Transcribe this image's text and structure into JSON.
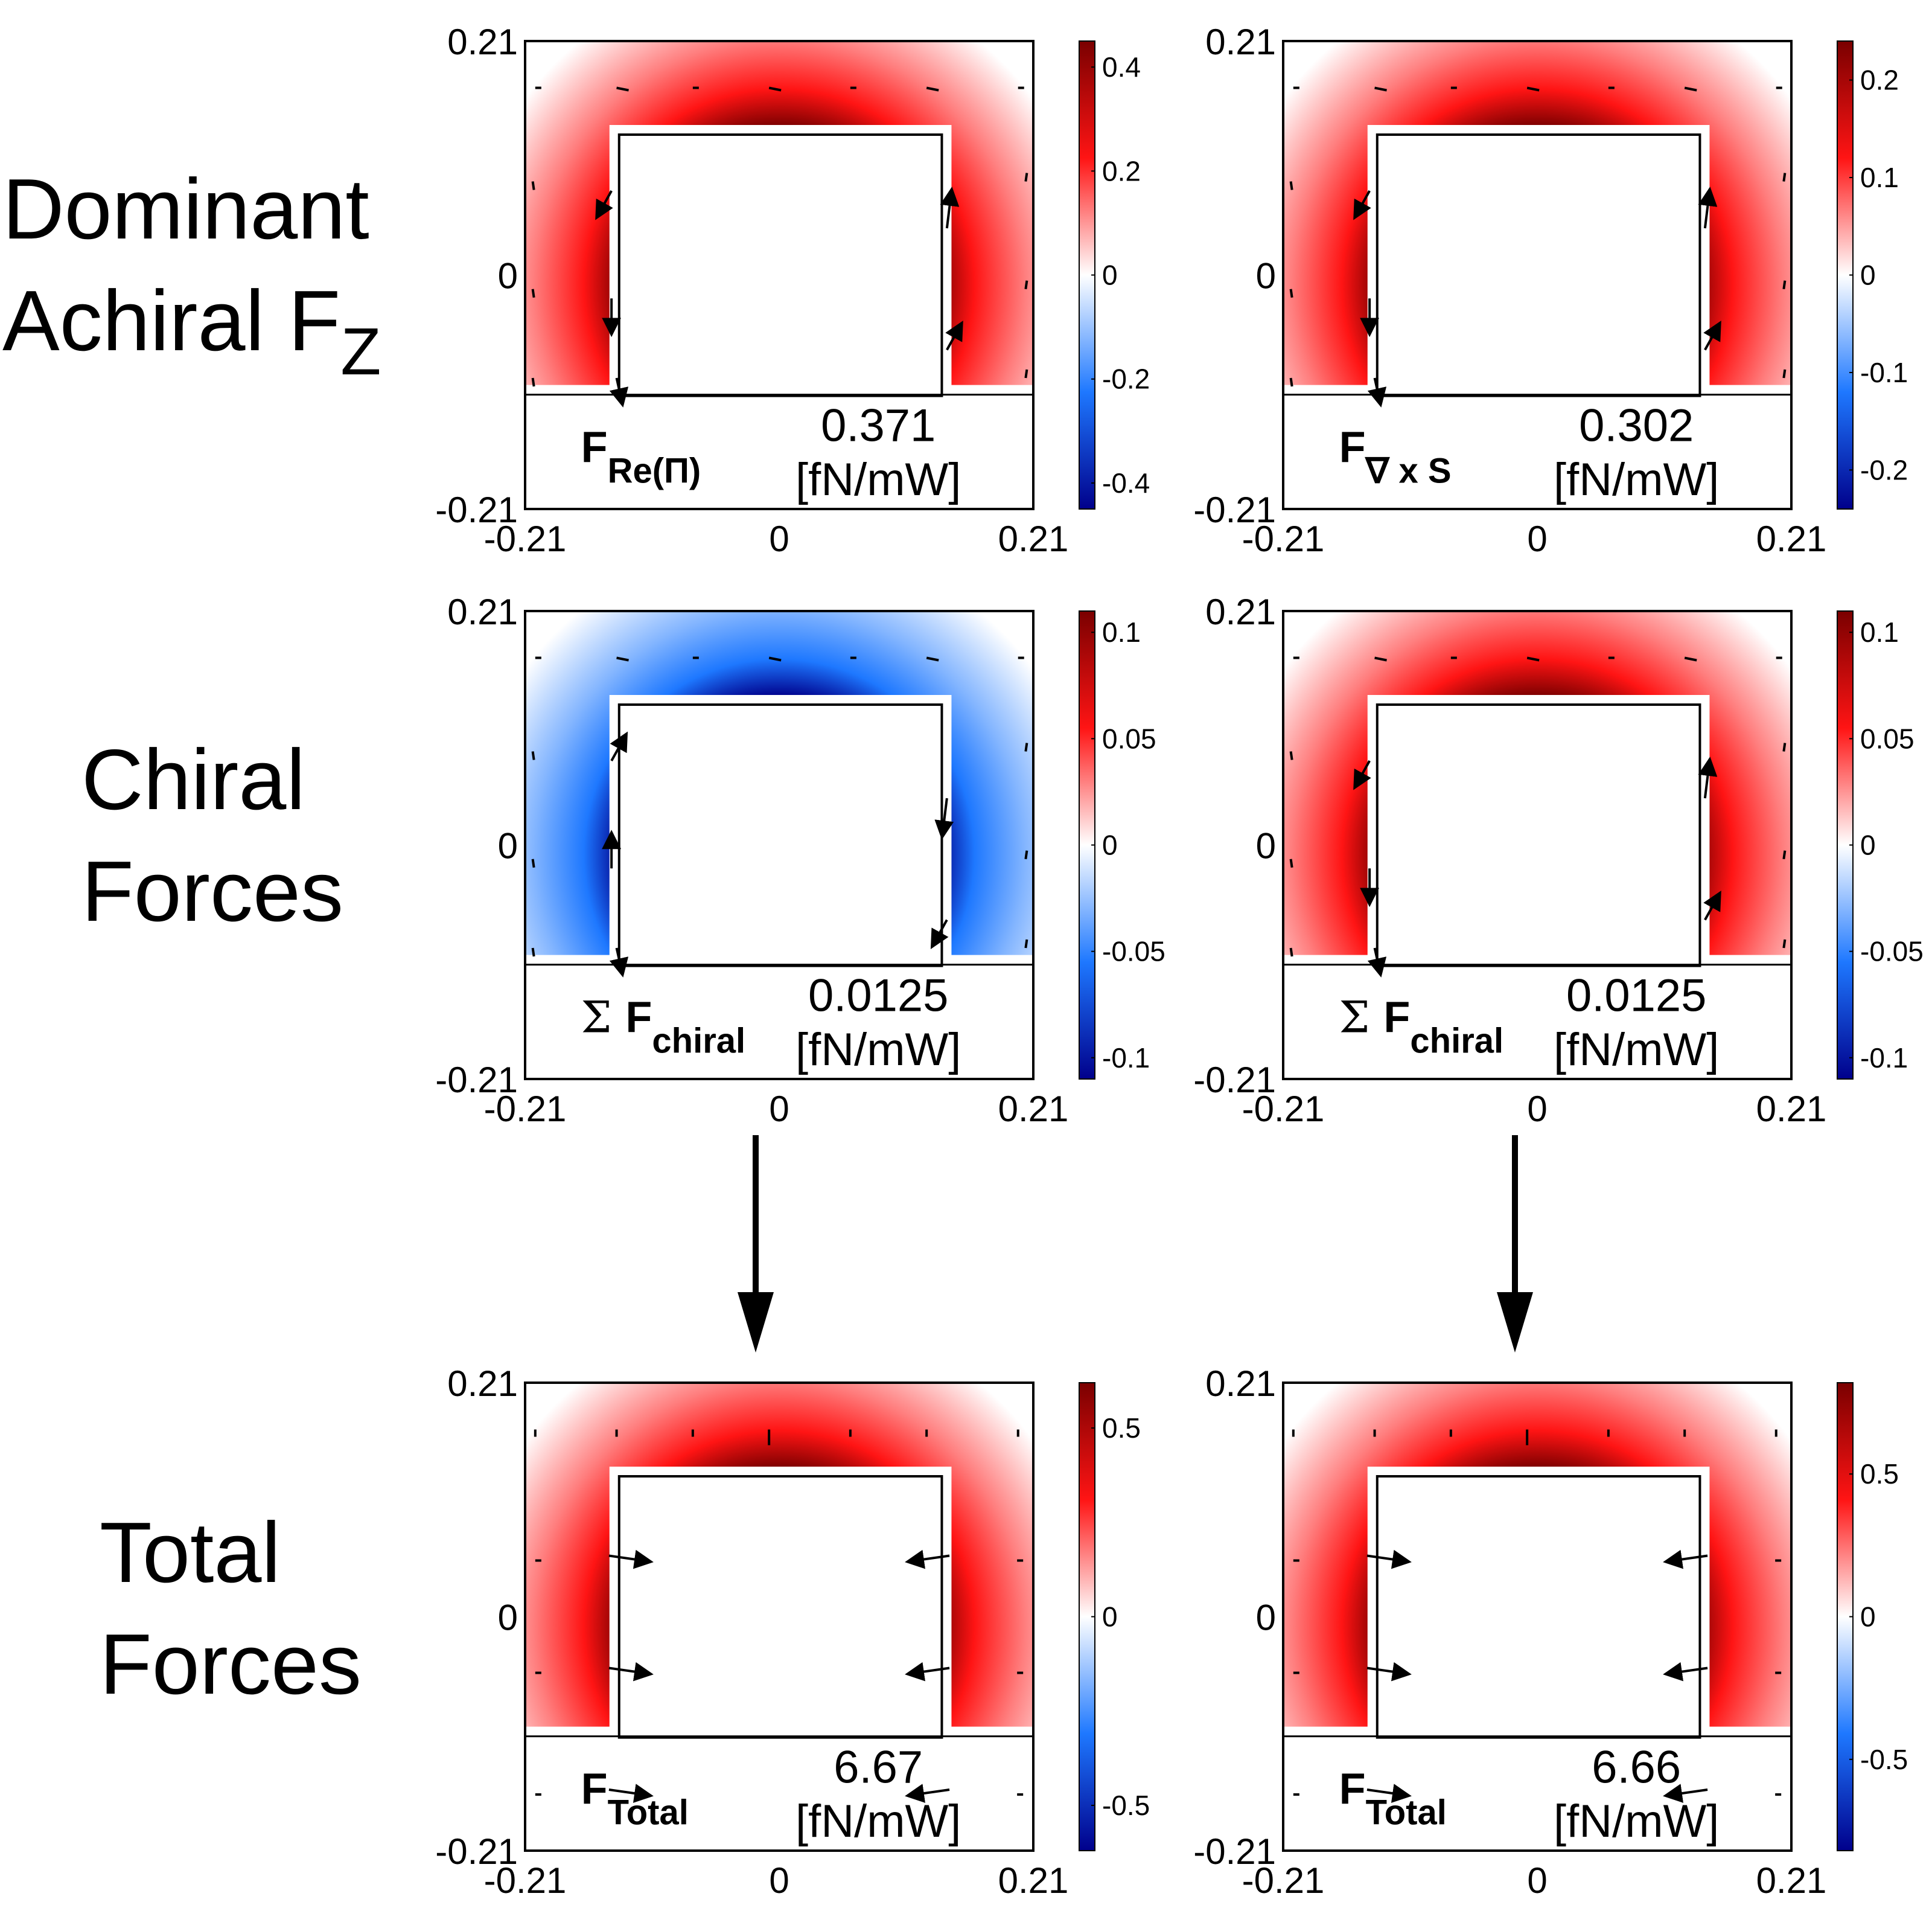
{
  "row_labels": [
    {
      "line1": "Dominant",
      "line2": "Achiral F",
      "sub": "Z"
    },
    {
      "line1": "Chiral",
      "line2": "Forces",
      "sub": ""
    },
    {
      "line1": "Total",
      "line2": "Forces",
      "sub": ""
    }
  ],
  "colors": {
    "map_low": "#00008b",
    "map_mid_low": "#1e78ff",
    "map_zero": "#ffffff",
    "map_mid_high": "#ff1414",
    "map_high": "#7a0000",
    "arrow": "#000000",
    "frame": "#000000"
  },
  "chart_data": [
    {
      "type": "heatmap",
      "row": 0,
      "col": 0,
      "field_sign": "positive",
      "xlim": [
        -0.21,
        0.21
      ],
      "ylim": [
        -0.21,
        0.21
      ],
      "xticks": [
        "-0.21",
        "0",
        "0.21"
      ],
      "yticks": [
        "0.21",
        "0",
        "-0.21"
      ],
      "colorbar": {
        "min": -0.45,
        "max": 0.45,
        "ticks": [
          0.4,
          0.2,
          0,
          -0.2,
          -0.4
        ],
        "tick_labels": [
          "0.4",
          "0.2",
          "0",
          "-0.2",
          "-0.4"
        ]
      },
      "label_main": "F",
      "label_sub": "Re(Π)",
      "label_prefix": "",
      "value": "0.371",
      "unit": "[fN/mW]",
      "arrows": "perimeter-tangential"
    },
    {
      "type": "heatmap",
      "row": 0,
      "col": 1,
      "field_sign": "positive",
      "xlim": [
        -0.21,
        0.21
      ],
      "ylim": [
        -0.21,
        0.21
      ],
      "xticks": [
        "-0.21",
        "0",
        "0.21"
      ],
      "yticks": [
        "0.21",
        "0",
        "-0.21"
      ],
      "colorbar": {
        "min": -0.24,
        "max": 0.24,
        "ticks": [
          0.2,
          0.1,
          0,
          -0.1,
          -0.2
        ],
        "tick_labels": [
          "0.2",
          "0.1",
          "0",
          "-0.1",
          "-0.2"
        ]
      },
      "label_main": "F",
      "label_sub": "∇ x S",
      "label_prefix": "",
      "value": "0.302",
      "unit": "[fN/mW]",
      "arrows": "perimeter-tangential"
    },
    {
      "type": "heatmap",
      "row": 1,
      "col": 0,
      "field_sign": "negative",
      "xlim": [
        -0.21,
        0.21
      ],
      "ylim": [
        -0.21,
        0.21
      ],
      "xticks": [
        "-0.21",
        "0",
        "0.21"
      ],
      "yticks": [
        "0.21",
        "0",
        "-0.21"
      ],
      "colorbar": {
        "min": -0.11,
        "max": 0.11,
        "ticks": [
          0.1,
          0.05,
          0,
          -0.05,
          -0.1
        ],
        "tick_labels": [
          "0.1",
          "0.05",
          "0",
          "-0.05",
          "-0.1"
        ]
      },
      "label_main": "F",
      "label_sub": "chiral",
      "label_prefix": "Σ",
      "value": "0.0125",
      "unit": "[fN/mW]",
      "arrows": "chiral-negative"
    },
    {
      "type": "heatmap",
      "row": 1,
      "col": 1,
      "field_sign": "positive",
      "xlim": [
        -0.21,
        0.21
      ],
      "ylim": [
        -0.21,
        0.21
      ],
      "xticks": [
        "-0.21",
        "0",
        "0.21"
      ],
      "yticks": [
        "0.21",
        "0",
        "-0.21"
      ],
      "colorbar": {
        "min": -0.11,
        "max": 0.11,
        "ticks": [
          0.1,
          0.05,
          0,
          -0.05,
          -0.1
        ],
        "tick_labels": [
          "0.1",
          "0.05",
          "0",
          "-0.05",
          "-0.1"
        ]
      },
      "label_main": "F",
      "label_sub": "chiral",
      "label_prefix": "Σ",
      "value": "0.0125",
      "unit": "[fN/mW]",
      "arrows": "chiral-positive"
    },
    {
      "type": "heatmap",
      "row": 2,
      "col": 0,
      "field_sign": "positive",
      "xlim": [
        -0.21,
        0.21
      ],
      "ylim": [
        -0.21,
        0.21
      ],
      "xticks": [
        "-0.21",
        "0",
        "0.21"
      ],
      "yticks": [
        "0.21",
        "0",
        "-0.21"
      ],
      "colorbar": {
        "min": -0.62,
        "max": 0.62,
        "ticks": [
          0.5,
          0,
          -0.5
        ],
        "tick_labels": [
          "0.5",
          "0",
          "-0.5"
        ]
      },
      "label_main": "F",
      "label_sub": "Total",
      "label_prefix": "",
      "value": "6.67",
      "unit": "[fN/mW]",
      "arrows": "inward"
    },
    {
      "type": "heatmap",
      "row": 2,
      "col": 1,
      "field_sign": "positive",
      "xlim": [
        -0.21,
        0.21
      ],
      "ylim": [
        -0.21,
        0.21
      ],
      "xticks": [
        "-0.21",
        "0",
        "0.21"
      ],
      "yticks": [
        "0.21",
        "0",
        "-0.21"
      ],
      "colorbar": {
        "min": -0.82,
        "max": 0.82,
        "ticks": [
          0.5,
          0,
          -0.5
        ],
        "tick_labels": [
          "0.5",
          "0",
          "-0.5"
        ]
      },
      "label_main": "F",
      "label_sub": "Total",
      "label_prefix": "",
      "value": "6.66",
      "unit": "[fN/mW]",
      "arrows": "inward"
    }
  ]
}
